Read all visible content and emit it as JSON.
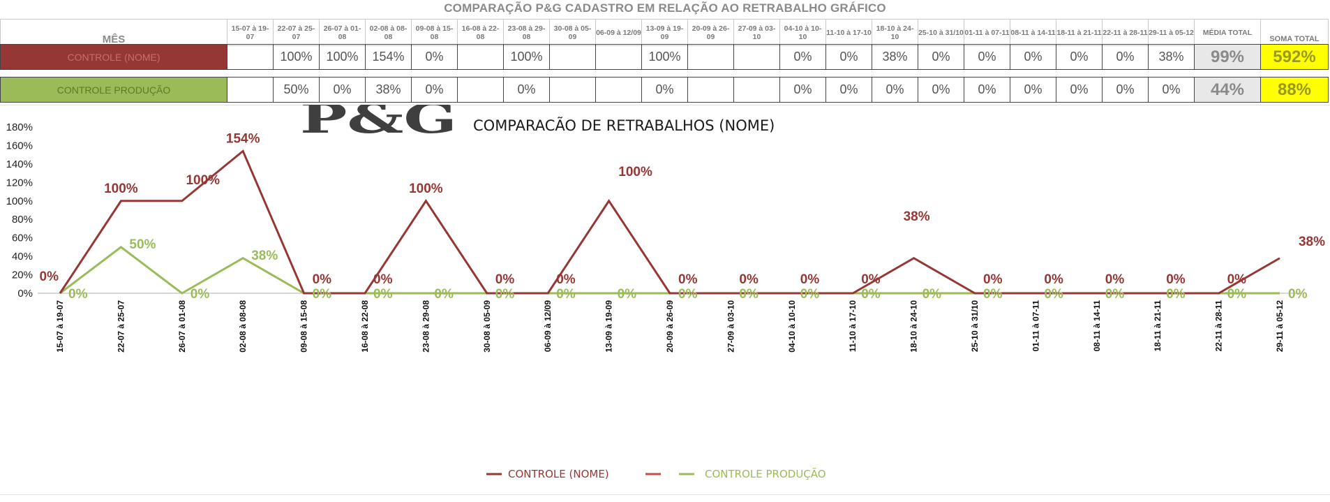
{
  "page_title": "COMPARAÇÃO P&G  CADASTRO EM RELAÇÃO AO RETRABALHO GRÁFICO",
  "table": {
    "header_label": "MÊS",
    "periods": [
      "15-07 à 19-07",
      "22-07 à 25-07",
      "26-07 à 01-08",
      "02-08 à 08-08",
      "09-08 à 15-08",
      "16-08 à 22-08",
      "23-08 à 29-08",
      "30-08 à 05-09",
      "06-09 à 12/09",
      "13-09 à 19-09",
      "20-09 à 26-09",
      "27-09 à 03-10",
      "04-10 à 10-10",
      "11-10 à 17-10",
      "18-10 à 24-10",
      "25-10 à 31/10",
      "01-11 à 07-11",
      "08-11 à 14-11",
      "18-11 à 21-11",
      "22-11 à 28-11",
      "29-11 à 05-12"
    ],
    "media_header": "MÉDIA TOTAL",
    "soma_header": "SOMA TOTAL",
    "rows": [
      {
        "label": "CONTROLE (NOME)",
        "values": [
          "",
          "100%",
          "100%",
          "154%",
          "0%",
          "",
          "100%",
          "",
          "",
          "100%",
          "",
          "",
          "0%",
          "0%",
          "38%",
          "0%",
          "0%",
          "0%",
          "0%",
          "0%",
          "38%"
        ],
        "media": "99%",
        "soma": "592%"
      },
      {
        "label": "CONTROLE PRODUÇÃO",
        "values": [
          "",
          "50%",
          "0%",
          "38%",
          "0%",
          "",
          "0%",
          "",
          "",
          "0%",
          "",
          "",
          "0%",
          "0%",
          "0%",
          "0%",
          "0%",
          "0%",
          "0%",
          "0%",
          "0%"
        ],
        "media": "44%",
        "soma": "88%"
      }
    ]
  },
  "chart_data": {
    "type": "line",
    "title": "COMPARACÃO DE RETRABALHOS  (NOME)",
    "logo_text": "P&G",
    "categories": [
      "15-07 à 19-07",
      "22-07 à 25-07",
      "26-07 à 01-08",
      "02-08 à 08-08",
      "09-08 à 15-08",
      "16-08 à 22-08",
      "23-08 à 29-08",
      "30-08 à 05-09",
      "06-09 à 12/09",
      "13-09 à 19-09",
      "20-09 à 26-09",
      "27-09 à 03-10",
      "04-10 à 10-10",
      "11-10 à 17-10",
      "18-10 à 24-10",
      "25-10 à 31/10",
      "01-11 à 07-11",
      "08-11 à 14-11",
      "18-11 à 21-11",
      "22-11 à 28-11",
      "29-11 à 05-12"
    ],
    "ylim": [
      0,
      180
    ],
    "yticks": [
      "0%",
      "20%",
      "40%",
      "60%",
      "80%",
      "100%",
      "120%",
      "140%",
      "160%",
      "180%"
    ],
    "ytick_values": [
      0,
      20,
      40,
      60,
      80,
      100,
      120,
      140,
      160,
      180
    ],
    "series": [
      {
        "name": "CONTROLE (NOME)",
        "color": "#953735",
        "values": [
          0,
          100,
          100,
          154,
          0,
          0,
          100,
          0,
          0,
          100,
          0,
          0,
          0,
          0,
          38,
          0,
          0,
          0,
          0,
          0,
          38
        ],
        "labels": [
          "0%",
          "100%",
          "100%",
          "154%",
          "0%",
          "0%",
          "100%",
          "0%",
          "0%",
          "100%",
          "0%",
          "0%",
          "0%",
          "0%",
          "38%",
          "0%",
          "0%",
          "0%",
          "0%",
          "0%",
          "38%"
        ]
      },
      {
        "name": "CONTROLE PRODUÇÃO",
        "color": "#9bbb59",
        "values": [
          0,
          50,
          0,
          38,
          0,
          0,
          0,
          0,
          0,
          0,
          0,
          0,
          0,
          0,
          0,
          0,
          0,
          0,
          0,
          0,
          0
        ],
        "labels": [
          "0%",
          "50%",
          "0%",
          "38%",
          "0%",
          "0%",
          "0%",
          "0%",
          "0%",
          "0%",
          "0%",
          "0%",
          "0%",
          "0%",
          "0%",
          "0%",
          "0%",
          "0%",
          "0%",
          "0%",
          "0%"
        ]
      }
    ],
    "legend": [
      {
        "name": "CONTROLE (NOME)",
        "color": "#953735"
      },
      {
        "name": "",
        "color": "#c0504d"
      },
      {
        "name": "CONTROLE PRODUÇÃO",
        "color": "#9bbb59"
      }
    ],
    "legend_position": "bottom",
    "grid": false
  }
}
